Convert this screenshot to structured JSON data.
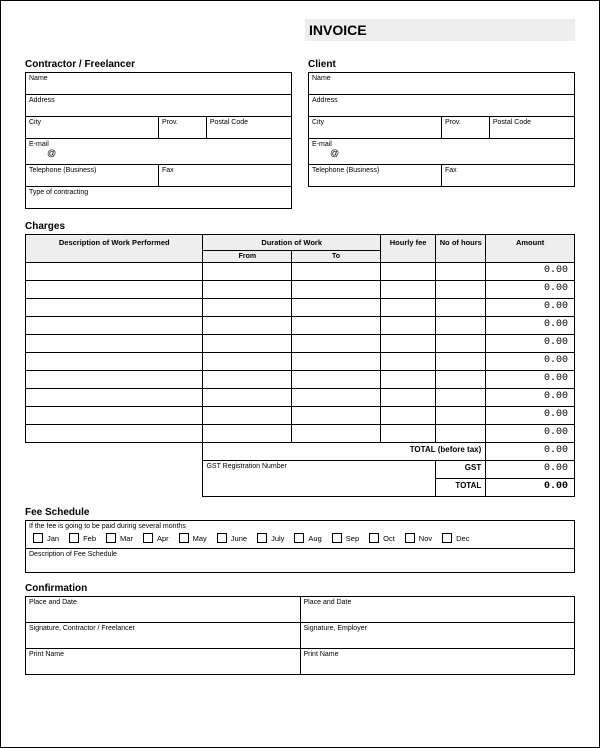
{
  "title": "INVOICE",
  "contractor": {
    "heading": "Contractor / Freelancer",
    "name": "Name",
    "address": "Address",
    "city": "City",
    "prov": "Prov.",
    "postal": "Postal Code",
    "email": "E-mail",
    "at": "@",
    "tel": "Telephone (Business)",
    "fax": "Fax",
    "type": "Type of contracting"
  },
  "client": {
    "heading": "Client",
    "name": "Name",
    "address": "Address",
    "city": "City",
    "prov": "Prov.",
    "postal": "Postal Code",
    "email": "E-mail",
    "at": "@",
    "tel": "Telephone (Business)",
    "fax": "Fax"
  },
  "charges": {
    "heading": "Charges",
    "col_desc": "Description of Work Performed",
    "col_duration": "Duration of Work",
    "col_from": "From",
    "col_to": "To",
    "col_hourly": "Hourly fee",
    "col_hours": "No of hours",
    "col_amount": "Amount",
    "rows": [
      {
        "amount": "0.00"
      },
      {
        "amount": "0.00"
      },
      {
        "amount": "0.00"
      },
      {
        "amount": "0.00"
      },
      {
        "amount": "0.00"
      },
      {
        "amount": "0.00"
      },
      {
        "amount": "0.00"
      },
      {
        "amount": "0.00"
      },
      {
        "amount": "0.00"
      },
      {
        "amount": "0.00"
      }
    ],
    "total_before": "TOTAL (before tax)",
    "total_before_val": "0.00",
    "gst_reg": "GST Registration Number",
    "gst": "GST",
    "gst_val": "0.00",
    "total": "TOTAL",
    "total_val": "0.00"
  },
  "fee": {
    "heading": "Fee Schedule",
    "note": "If the fee is going to be paid during several months",
    "months": [
      "Jan",
      "Feb",
      "Mar",
      "Apr",
      "May",
      "June",
      "July",
      "Aug",
      "Sep",
      "Oct",
      "Nov",
      "Dec"
    ],
    "desc": "Description of Fee Schedule"
  },
  "conf": {
    "heading": "Confirmation",
    "place": "Place and Date",
    "sig_contractor": "Signature, Contractor / Freelancer",
    "sig_employer": "Signature, Employer",
    "print": "Print Name"
  }
}
